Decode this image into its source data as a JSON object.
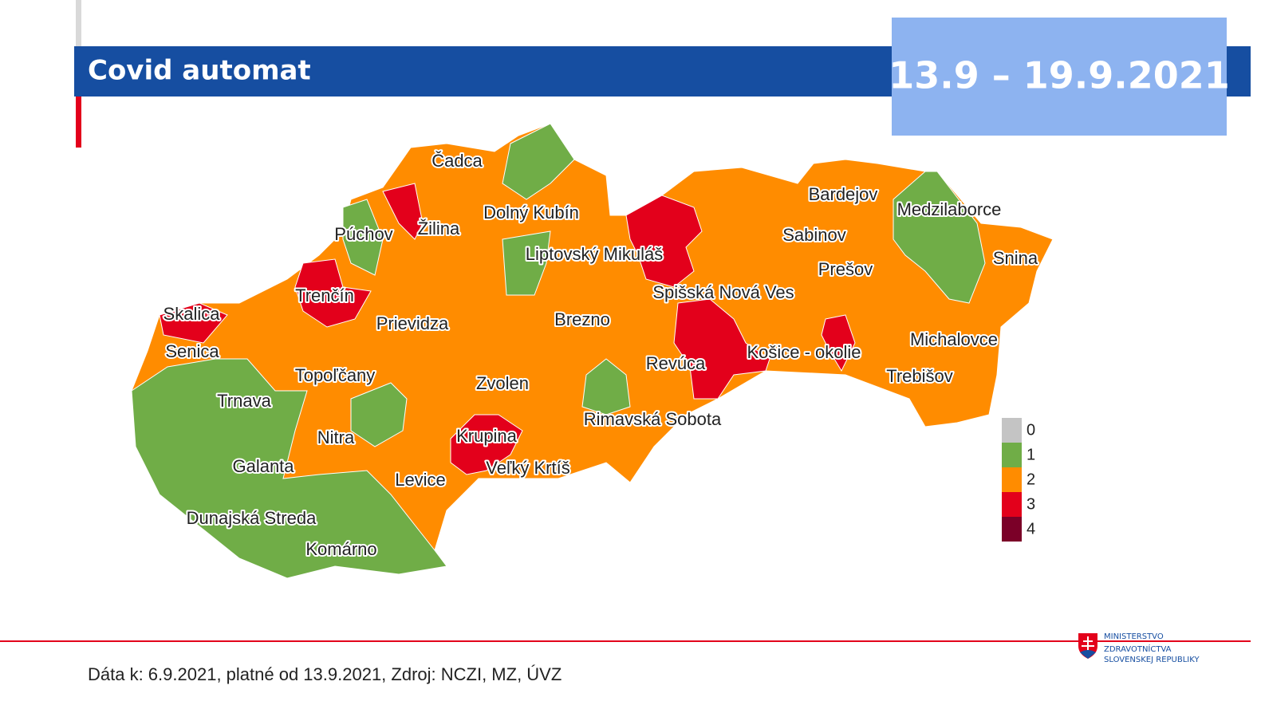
{
  "header": {
    "title": "Covid automat",
    "period": "13.9 – 19.9.2021"
  },
  "map": {
    "labels": [
      "Čadca",
      "Žilina",
      "Dolný Kubín",
      "Púchov",
      "Liptovský Mikuláš",
      "Trenčín",
      "Skalica",
      "Prievidza",
      "Brezno",
      "Senica",
      "Topoľčany",
      "Zvolen",
      "Trnava",
      "Nitra",
      "Krupina",
      "Veľký Krtíš",
      "Galanta",
      "Levice",
      "Dunajská Streda",
      "Komárno",
      "Rimavská Sobota",
      "Revúca",
      "Spišská Nová Ves",
      "Košice - okolie",
      "Bardejov",
      "Medzilaborce",
      "Sabinov",
      "Prešov",
      "Snina",
      "Michalovce",
      "Trebišov"
    ]
  },
  "legend": {
    "items": [
      {
        "value": 0,
        "color": "#c4c4c4"
      },
      {
        "value": 1,
        "color": "#70ad47"
      },
      {
        "value": 2,
        "color": "#ff8c00"
      },
      {
        "value": 3,
        "color": "#e3001b"
      },
      {
        "value": 4,
        "color": "#7b0028"
      }
    ]
  },
  "footer": {
    "source": "Dáta k: 6.9.2021, platné od 13.9.2021, Zdroj: NCZI, MZ, ÚVZ",
    "logo": [
      "MINISTERSTVO",
      "ZDRAVOTNÍCTVA",
      "SLOVENSKEJ REPUBLIKY"
    ]
  }
}
